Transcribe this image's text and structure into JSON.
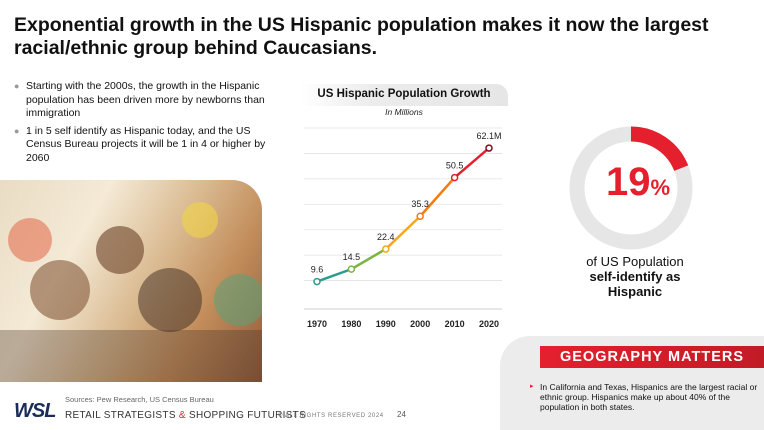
{
  "title": "Exponential growth in the US Hispanic population makes it now the largest racial/ethnic group behind Caucasians.",
  "bullets": [
    "Starting with the 2000s, the growth in the Hispanic population has been driven more by newborns than immigration",
    "1 in 5 self identify as Hispanic today, and the US Census Bureau projects it will be 1 in 4 or higher by 2060"
  ],
  "chart_data": {
    "type": "line",
    "title": "US Hispanic Population Growth",
    "subtitle": "In Millions",
    "categories": [
      "1970",
      "1980",
      "1990",
      "2000",
      "2010",
      "2020"
    ],
    "values": [
      9.6,
      14.5,
      22.4,
      35.3,
      50.5,
      62.1
    ],
    "data_labels": [
      "9.6",
      "14.5",
      "22.4",
      "35.3",
      "50.5",
      "62.1M"
    ],
    "ylim": [
      0,
      70
    ],
    "grid": true,
    "line_colors": [
      "#2a9d8f",
      "#7cb342",
      "#f4a81d",
      "#f07c12",
      "#e4202e",
      "#7d0f1a"
    ],
    "marker_color": "#ffffff"
  },
  "stat": {
    "value": "19",
    "unit": "%",
    "fraction": 0.19,
    "label_line1": "of US Population",
    "label_line2": "self-identify as",
    "label_line3": "Hispanic",
    "ring_color": "#e4202e",
    "track_color": "#e6e6e6"
  },
  "geography": {
    "heading": "GEOGRAPHY MATTERS",
    "text": "In California and Texas, Hispanics are the largest racial or ethnic group.  Hispanics make up about 40% of the population in both states."
  },
  "footer": {
    "source": "Sources: Pew Research, US Census Bureau",
    "logo": "WSL",
    "tagline_part1": "RETAIL STRATEGISTS",
    "tagline_amp": "&",
    "tagline_part2": "SHOPPING FUTURISTS",
    "rights": "© ALL RIGHTS RESERVED 2024",
    "page": "24"
  },
  "colors": {
    "accent": "#e4202e",
    "brand_navy": "#1a2d5a"
  },
  "icons": [
    "bullet-dot-icon",
    "arrow-right-icon"
  ]
}
